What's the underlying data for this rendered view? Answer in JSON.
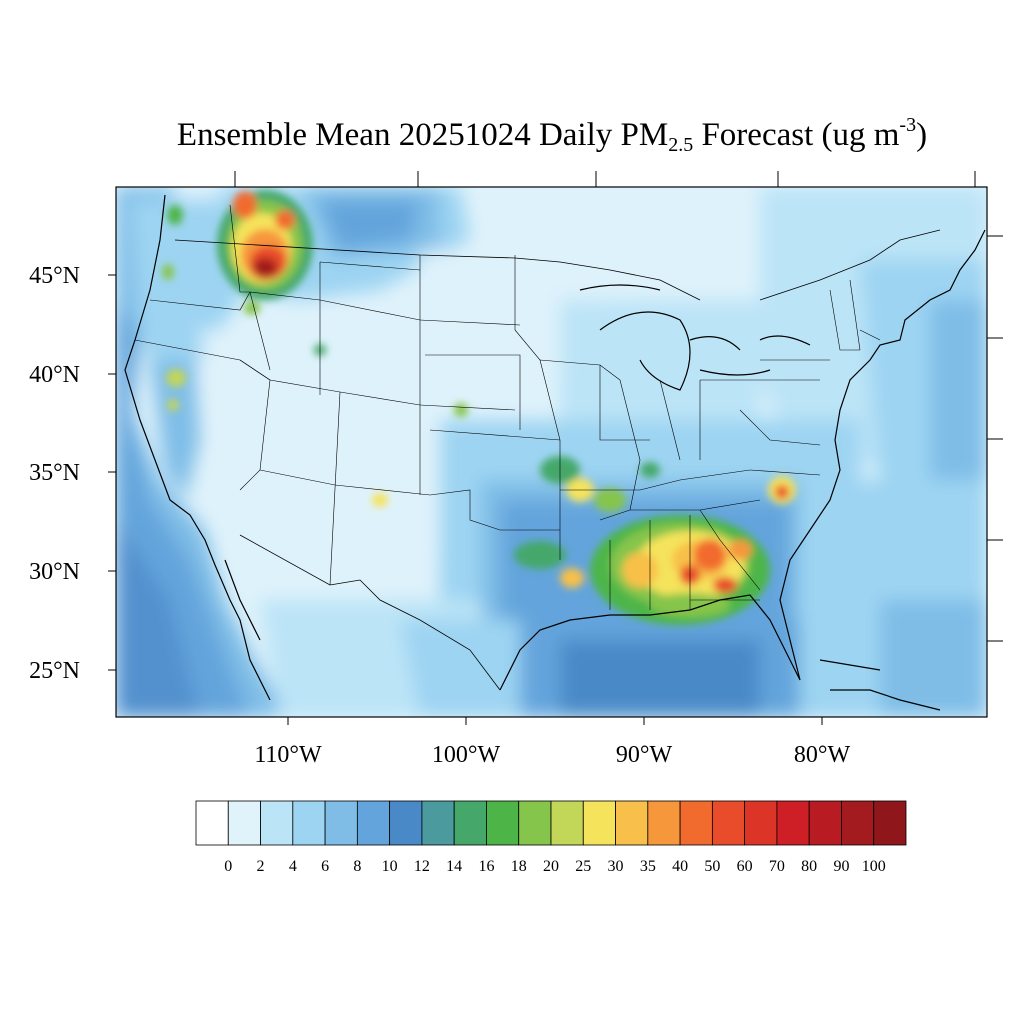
{
  "title": {
    "main": "Ensemble Mean 20251024 Daily PM",
    "subscript": "2.5",
    "middle": " Forecast (ug m",
    "superscript": "-3",
    "end": ")"
  },
  "map": {
    "region": "Contiguous United States",
    "lat_labels": [
      "45°N",
      "40°N",
      "35°N",
      "30°N",
      "25°N"
    ],
    "lon_labels": [
      "110°W",
      "100°W",
      "90°W",
      "80°W"
    ],
    "background_color": "#def2fb"
  },
  "colorbar": {
    "labels": [
      "0",
      "2",
      "4",
      "6",
      "8",
      "10",
      "12",
      "14",
      "16",
      "18",
      "20",
      "25",
      "30",
      "35",
      "40",
      "50",
      "60",
      "70",
      "80",
      "90",
      "100"
    ],
    "colors": [
      "#ffffff",
      "#e0f3fb",
      "#bce4f7",
      "#9dd4f2",
      "#7fbde7",
      "#64a4dc",
      "#4a89c8",
      "#4a9a9e",
      "#45a86a",
      "#4db548",
      "#86c54c",
      "#c2d658",
      "#f5e35b",
      "#f8c04a",
      "#f6973c",
      "#f26b2e",
      "#e84c2b",
      "#dc3527",
      "#cf1f26",
      "#b81c22",
      "#a31b1f",
      "#8f171b"
    ]
  }
}
